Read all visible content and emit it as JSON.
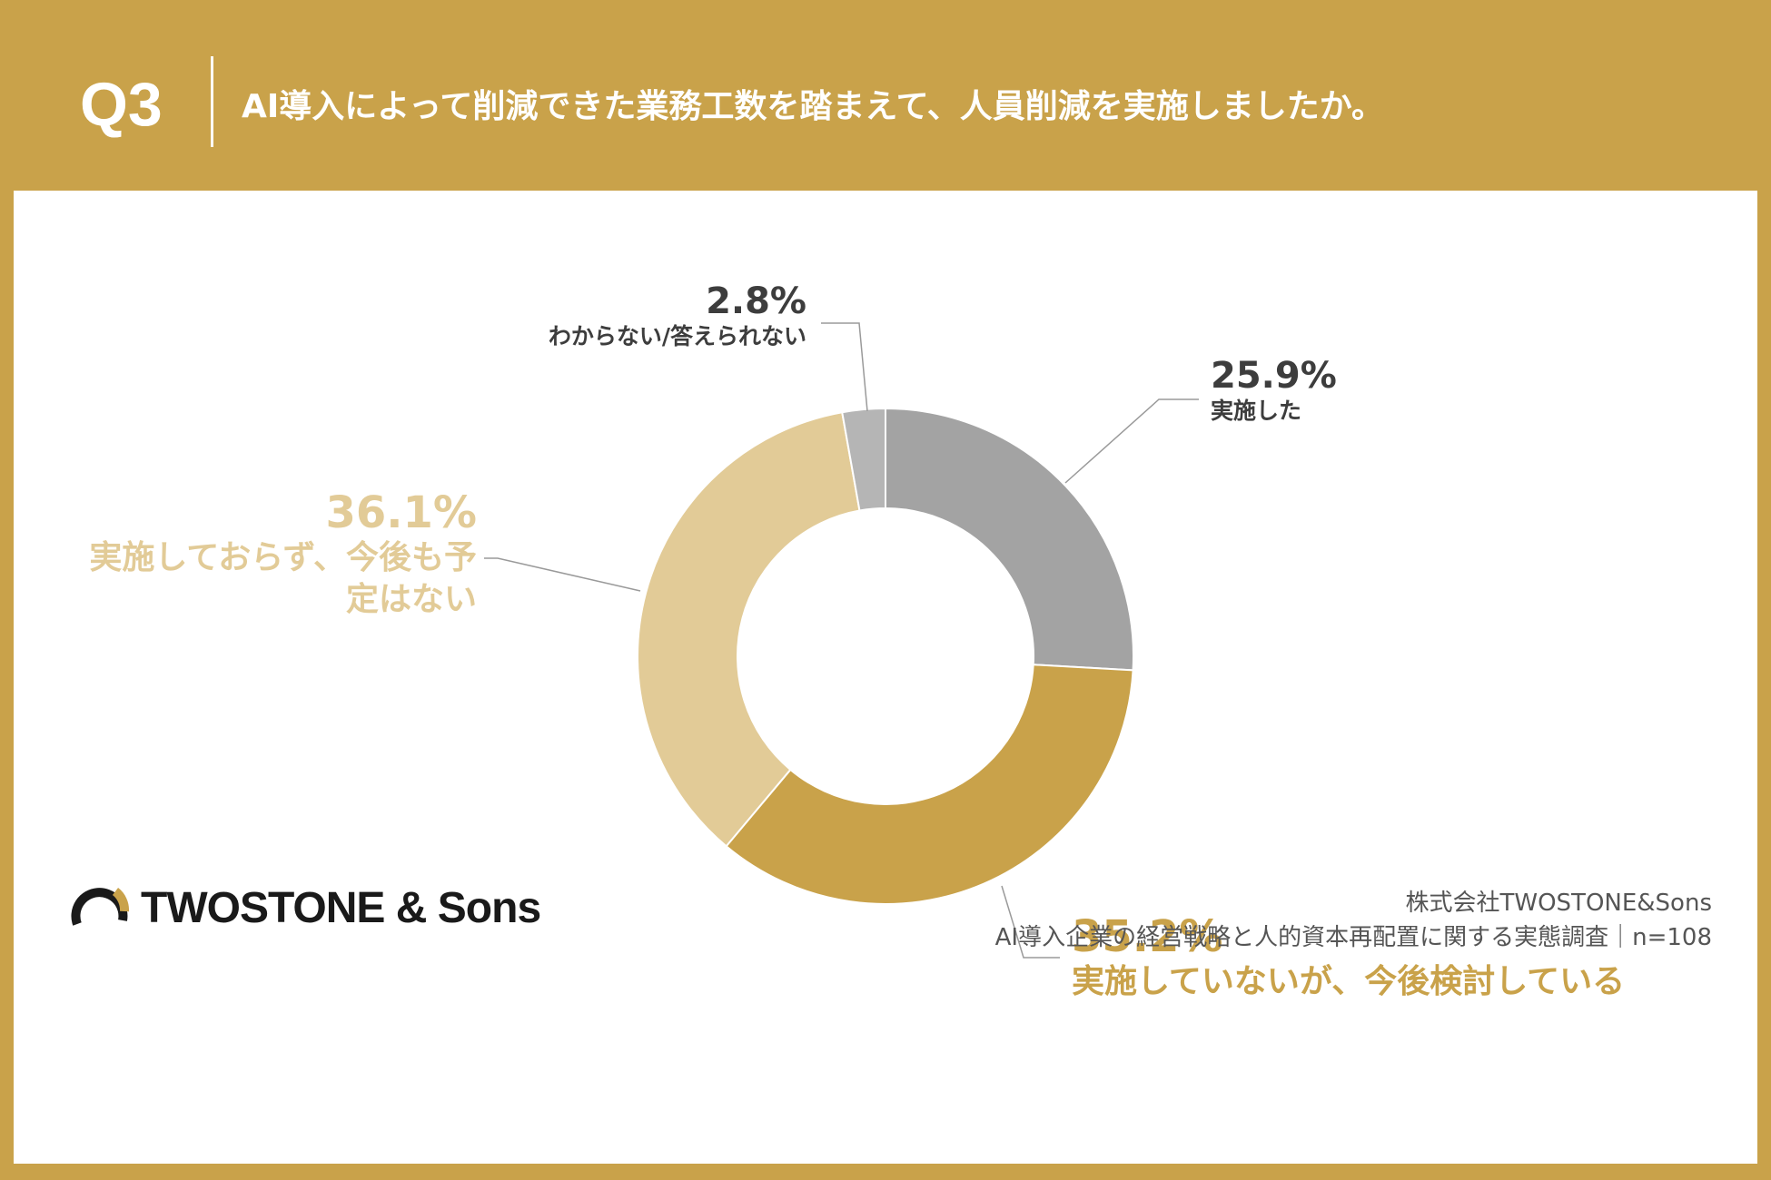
{
  "header": {
    "q_label": "Q3",
    "title": "AI導入によって削減できた業務工数を踏まえて、人員削減を実施しましたか。"
  },
  "chart_data": {
    "type": "pie",
    "categories": [
      "実施した",
      "実施していないが、今後検討している",
      "実施しておらず、今後も予定はない",
      "わからない/答えられない"
    ],
    "values": [
      25.9,
      35.2,
      36.1,
      2.8
    ],
    "value_labels": [
      "25.9%",
      "35.2%",
      "36.1%",
      "2.8%"
    ],
    "colors": [
      "#a3a3a3",
      "#c9a24a",
      "#e2cb97",
      "#b5b5b5"
    ],
    "label_colors": [
      "#3d3d3d",
      "#c9a24a",
      "#e2cb97",
      "#3d3d3d"
    ],
    "hole_ratio": 0.4,
    "start_angle": "12 o'clock",
    "direction": "clockwise"
  },
  "footer": {
    "company": "株式会社TWOSTONE&Sons",
    "survey": "AI導入企業の経営戦略と人的資本再配置に関する実態調査｜n=108"
  },
  "logo": {
    "text": "TWOSTONE & Sons",
    "icon": "ring-logo-icon"
  }
}
